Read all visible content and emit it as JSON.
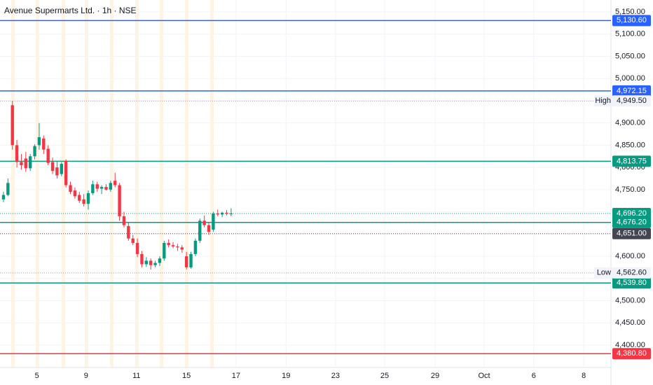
{
  "chart_data": {
    "type": "candlestick",
    "title": "Avenue Supermarts Ltd. · 1h · NSE",
    "x": [
      0,
      1,
      2,
      3,
      4,
      5,
      6,
      7,
      8,
      9,
      10,
      11,
      12,
      13,
      14,
      15,
      16,
      17,
      18,
      19,
      20,
      21,
      22,
      23,
      24,
      25,
      26,
      27,
      28,
      29,
      30,
      31,
      32,
      33,
      34,
      35,
      36,
      37,
      38,
      39,
      40,
      41,
      42,
      43,
      44,
      45,
      46,
      47,
      48,
      49,
      50,
      51
    ],
    "open": [
      4728,
      4738,
      4940,
      4850,
      4812,
      4820,
      4798,
      4825,
      4850,
      4865,
      4842,
      4812,
      4800,
      4785,
      4815,
      4760,
      4748,
      4738,
      4728,
      4718,
      4742,
      4762,
      4752,
      4756,
      4750,
      4770,
      4760,
      4690,
      4668,
      4640,
      4630,
      4605,
      4582,
      4590,
      4580,
      4585,
      4595,
      4630,
      4625,
      4622,
      4620,
      4600,
      4575,
      4605,
      4635,
      4680,
      4670,
      4660,
      4696,
      4694,
      4698,
      4696
    ],
    "high": [
      4745,
      4775,
      4949.5,
      4862,
      4830,
      4835,
      4830,
      4852,
      4900,
      4872,
      4850,
      4822,
      4815,
      4812,
      4818,
      4768,
      4755,
      4745,
      4740,
      4748,
      4770,
      4768,
      4760,
      4762,
      4770,
      4788,
      4765,
      4700,
      4675,
      4648,
      4640,
      4612,
      4598,
      4595,
      4590,
      4600,
      4635,
      4638,
      4632,
      4628,
      4625,
      4610,
      4610,
      4640,
      4685,
      4692,
      4675,
      4700,
      4705,
      4700,
      4704,
      4708
    ],
    "low": [
      4722,
      4735,
      4840,
      4800,
      4795,
      4790,
      4792,
      4818,
      4840,
      4830,
      4805,
      4785,
      4775,
      4780,
      4755,
      4740,
      4730,
      4720,
      4712,
      4705,
      4738,
      4745,
      4740,
      4748,
      4745,
      4755,
      4680,
      4665,
      4635,
      4625,
      4598,
      4575,
      4576,
      4570,
      4575,
      4578,
      4590,
      4620,
      4618,
      4612,
      4608,
      4570,
      4572,
      4600,
      4630,
      4665,
      4648,
      4655,
      4690,
      4688,
      4692,
      4690
    ],
    "close": [
      4738,
      4765,
      4850,
      4812,
      4805,
      4798,
      4825,
      4848,
      4868,
      4840,
      4810,
      4792,
      4782,
      4808,
      4760,
      4745,
      4735,
      4725,
      4718,
      4742,
      4762,
      4752,
      4756,
      4750,
      4765,
      4760,
      4690,
      4670,
      4640,
      4630,
      4605,
      4582,
      4590,
      4580,
      4585,
      4595,
      4630,
      4625,
      4622,
      4620,
      4615,
      4575,
      4605,
      4635,
      4680,
      4670,
      4655,
      4696,
      4694,
      4698,
      4696,
      4696.2
    ],
    "up_color": "#089981",
    "down_color": "#f23645",
    "xlim": [
      -0.78,
      136.1
    ],
    "xticks": [
      {
        "value": 7.5,
        "label": "5"
      },
      {
        "value": 18.5,
        "label": "9"
      },
      {
        "value": 29.8,
        "label": "11"
      },
      {
        "value": 41,
        "label": "15"
      },
      {
        "value": 52.1,
        "label": "17"
      },
      {
        "value": 63.3,
        "label": "19"
      },
      {
        "value": 74.4,
        "label": "23"
      },
      {
        "value": 85.4,
        "label": "25"
      },
      {
        "value": 96.7,
        "label": "29"
      },
      {
        "value": 107.7,
        "label": "Oct"
      },
      {
        "value": 118.8,
        "label": "6"
      },
      {
        "value": 130,
        "label": "8"
      }
    ],
    "ylim": [
      4349.6,
      5176.8
    ],
    "yticks": [
      {
        "value": 4400,
        "label": "4,400.00"
      },
      {
        "value": 4450,
        "label": "4,450.00"
      },
      {
        "value": 4500,
        "label": "4,500.00"
      },
      {
        "value": 4550,
        "label": "4,550.00"
      },
      {
        "value": 4600,
        "label": "4,600.00"
      },
      {
        "value": 4650,
        "label": "4,650.00"
      },
      {
        "value": 4700,
        "label": "4,700.00"
      },
      {
        "value": 4750,
        "label": "4,750.00"
      },
      {
        "value": 4800,
        "label": "4,800.00"
      },
      {
        "value": 4850,
        "label": "4,850.00"
      },
      {
        "value": 4900,
        "label": "4,900.00"
      },
      {
        "value": 4950,
        "label": "4,950.00"
      },
      {
        "value": 5000,
        "label": "5,000.00"
      },
      {
        "value": 5050,
        "label": "5,050.00"
      },
      {
        "value": 5100,
        "label": "5,100.00"
      },
      {
        "value": 5150,
        "label": "5,150.00"
      }
    ],
    "grid": true,
    "levels": [
      {
        "value": 5130.6,
        "label": "5,130.60",
        "color": "#2962ff"
      },
      {
        "value": 4972.15,
        "label": "4,972.15",
        "color": "#2962ff"
      },
      {
        "value": 4813.75,
        "label": "4,813.75",
        "color": "#089981"
      },
      {
        "value": 4676.2,
        "label": "4,676.20",
        "color": "#089981"
      },
      {
        "value": 4539.8,
        "label": "4,539.80",
        "color": "#089981"
      },
      {
        "value": 4380.8,
        "label": "4,380.80",
        "color": "#f23645"
      }
    ],
    "price_tags": [
      {
        "name": "High",
        "value": 4949.5,
        "label": "4,949.50"
      },
      {
        "name": "Low",
        "value": 4562.6,
        "label": "4,562.60"
      },
      {
        "value": 4696.2,
        "label": "4,696.20",
        "color": "#089981"
      },
      {
        "value": 4651,
        "label": "4,651.00",
        "color": "#434651"
      }
    ]
  }
}
